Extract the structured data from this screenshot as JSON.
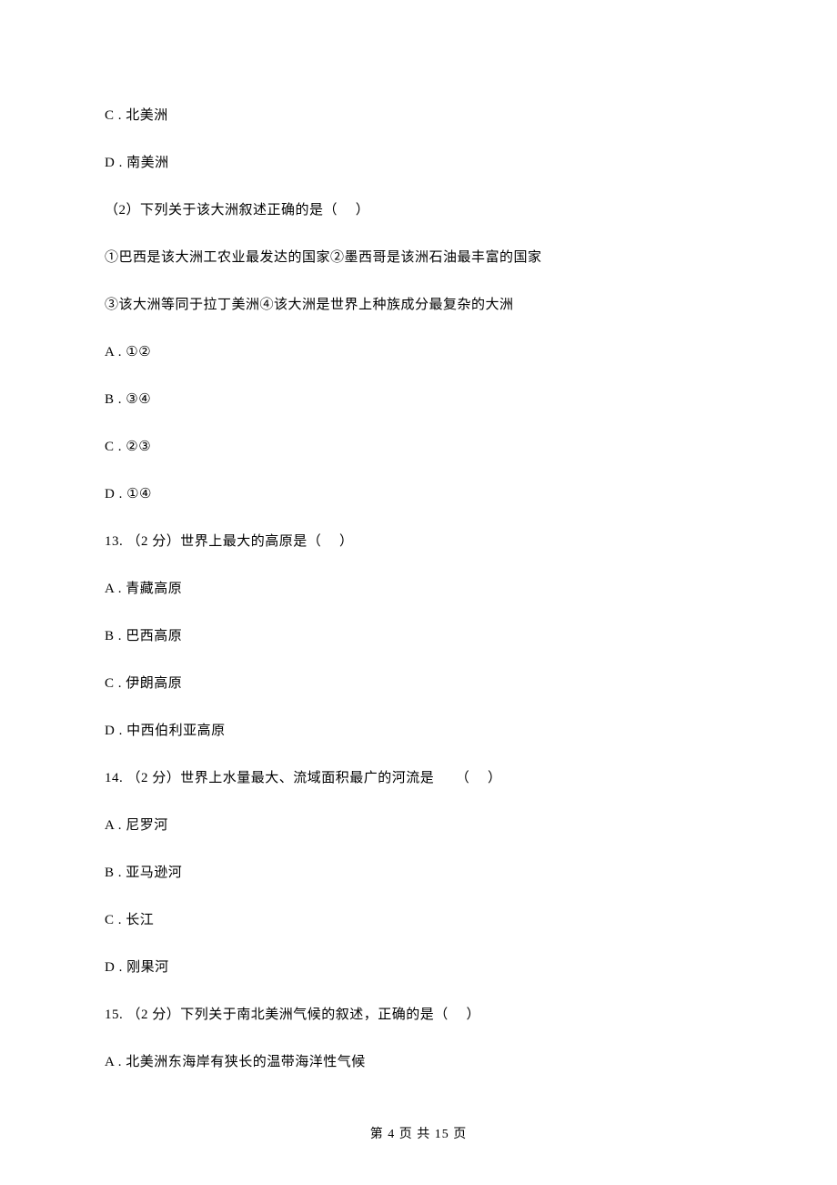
{
  "lines": [
    {
      "text": "C . 北美洲"
    },
    {
      "text": "D . 南美洲"
    },
    {
      "text": " （2）下列关于该大洲叙述正确的是（　 ）"
    },
    {
      "text": "①巴西是该大洲工农业最发达的国家②墨西哥是该洲石油最丰富的国家"
    },
    {
      "text": "③该大洲等同于拉丁美洲④该大洲是世界上种族成分最复杂的大洲"
    },
    {
      "text": "A . ①②"
    },
    {
      "text": "B . ③④"
    },
    {
      "text": "C . ②③"
    },
    {
      "text": "D . ①④"
    },
    {
      "text": "13. （2 分）世界上最大的高原是（　 ）"
    },
    {
      "text": "A . 青藏高原"
    },
    {
      "text": "B . 巴西高原"
    },
    {
      "text": "C . 伊朗高原"
    },
    {
      "text": "D . 中西伯利亚高原"
    },
    {
      "text": "14. （2 分）世界上水量最大、流域面积最广的河流是　　（　 ）"
    },
    {
      "text": "A . 尼罗河"
    },
    {
      "text": "B . 亚马逊河"
    },
    {
      "text": "C . 长江"
    },
    {
      "text": "D . 刚果河"
    },
    {
      "text": "15. （2 分）下列关于南北美洲气候的叙述，正确的是（　 ）"
    },
    {
      "text": "A . 北美洲东海岸有狭长的温带海洋性气候"
    }
  ],
  "footer": {
    "text": "第 4 页 共 15 页"
  },
  "colors": {
    "background": "#ffffff",
    "text": "#000000"
  },
  "typography": {
    "body_fontsize": 15,
    "footer_fontsize": 14,
    "line_spacing": 28
  }
}
